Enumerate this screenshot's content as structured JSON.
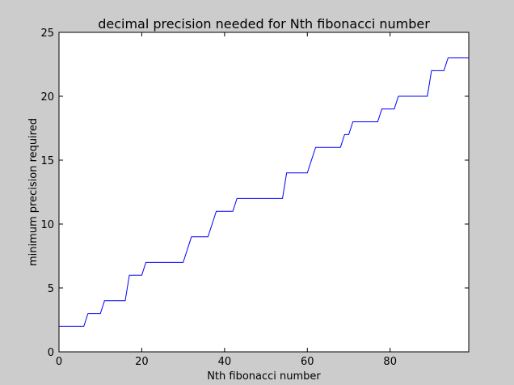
{
  "chart_data": {
    "type": "line",
    "title": "decimal precision needed for Nth fibonacci number",
    "xlabel": "Nth fibonacci number",
    "ylabel": "minimum precision required",
    "xlim": [
      0,
      99
    ],
    "ylim": [
      0,
      25
    ],
    "xticks": [
      0,
      20,
      40,
      60,
      80
    ],
    "yticks": [
      0,
      5,
      10,
      15,
      20,
      25
    ],
    "grid": false,
    "series": [
      {
        "color": "#0000ff",
        "x": [
          0,
          6,
          7,
          10,
          11,
          16,
          17,
          20,
          21,
          30,
          32,
          36,
          38,
          42,
          43,
          54,
          55,
          60,
          62,
          68,
          69,
          70,
          71,
          77,
          78,
          81,
          82,
          89,
          90,
          93,
          94,
          99
        ],
        "y": [
          2,
          2,
          3,
          3,
          4,
          4,
          6,
          6,
          7,
          7,
          9,
          9,
          11,
          11,
          12,
          12,
          14,
          14,
          16,
          16,
          17,
          17,
          18,
          18,
          19,
          19,
          20,
          20,
          22,
          22,
          23,
          23
        ]
      }
    ]
  },
  "colors": {
    "figure_bg": "#cccccc",
    "axes_bg": "#ffffff",
    "line": "#0000ff"
  }
}
